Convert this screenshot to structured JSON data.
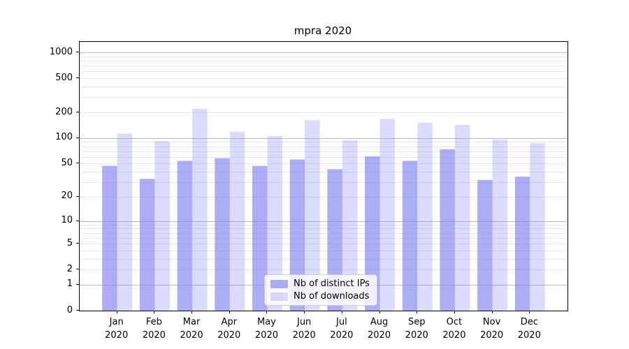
{
  "title": "mpra 2020",
  "chart_data": {
    "type": "bar",
    "title": "mpra 2020",
    "categories": [
      "Jan",
      "Feb",
      "Mar",
      "Apr",
      "May",
      "Jun",
      "Jul",
      "Aug",
      "Sep",
      "Oct",
      "Nov",
      "Dec"
    ],
    "category_year": "2020",
    "series": [
      {
        "name": "Nb of distinct IPs",
        "values": [
          47,
          33,
          54,
          58,
          47,
          56,
          43,
          61,
          54,
          74,
          32,
          35
        ],
        "color": "rgba(123,123,240,0.62)"
      },
      {
        "name": "Nb of downloads",
        "values": [
          113,
          92,
          220,
          119,
          106,
          162,
          94,
          168,
          152,
          143,
          96,
          87
        ],
        "color": "rgba(123,123,240,0.27)"
      }
    ],
    "xlabel": "",
    "ylabel": "",
    "y_scale": "log1p",
    "ylim": [
      0,
      1325
    ],
    "y_ticks": [
      0,
      1,
      2,
      5,
      10,
      20,
      50,
      100,
      200,
      500,
      1000
    ],
    "major_gridlines": [
      1,
      10,
      100,
      1000
    ],
    "minor_gridlines": [
      2,
      3,
      4,
      5,
      6,
      7,
      8,
      9,
      20,
      30,
      40,
      50,
      60,
      70,
      80,
      90,
      200,
      300,
      400,
      500,
      600,
      700,
      800,
      900
    ],
    "grid": "on",
    "legend_position": "lower center",
    "colors": {
      "major_grid": "#bdbdbd",
      "minor_grid": "#e8e8e8",
      "spine": "#000000",
      "background": "#ffffff"
    }
  }
}
